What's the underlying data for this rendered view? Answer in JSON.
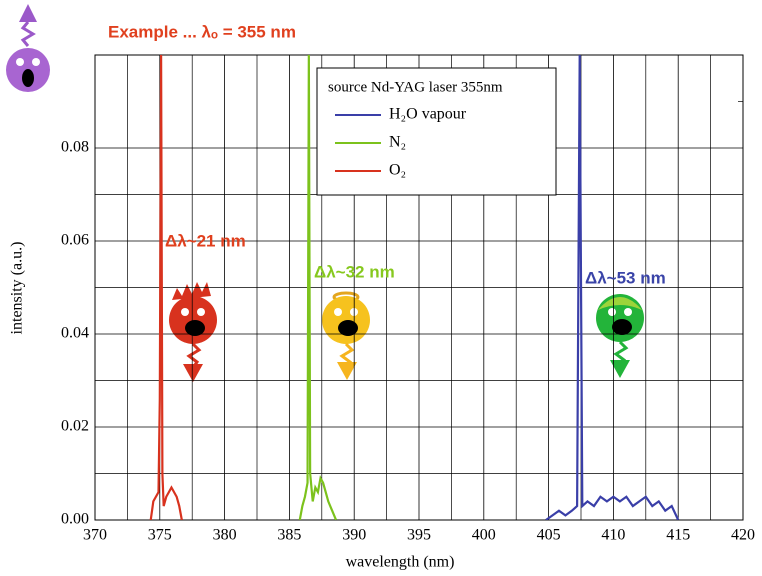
{
  "chart_data": {
    "type": "line",
    "x_label": "wavelength (nm)",
    "y_label": "intensity (a.u.)",
    "xlim": [
      370,
      420
    ],
    "xticks": [
      370,
      375,
      380,
      385,
      390,
      395,
      400,
      405,
      410,
      415,
      420
    ],
    "ylim": [
      0,
      0.1
    ],
    "yticks": [
      {
        "value": 0,
        "label": "0.00"
      },
      {
        "value": 0.02,
        "label": "0.02"
      },
      {
        "value": 0.04,
        "label": "0.04"
      },
      {
        "value": 0.06,
        "label": "0.06"
      },
      {
        "value": 0.08,
        "label": "0.08"
      }
    ],
    "grid": true,
    "legend_title": "source Nd-YAG laser 355nm",
    "legend_position": "top-right",
    "series": [
      {
        "name": "H₂O vapour",
        "color": "#3a3fa8",
        "x": [
          404.8,
          405.3,
          405.8,
          406.3,
          406.8,
          407.2,
          407.4,
          407.6,
          408.0,
          408.5,
          409.0,
          409.5,
          410.0,
          410.5,
          411.0,
          411.5,
          412.0,
          412.5,
          413.0,
          413.5,
          414.0,
          414.5,
          415.0
        ],
        "values": [
          0,
          0.001,
          0.002,
          0.001,
          0.002,
          0.003,
          0.1,
          0.003,
          0.004,
          0.003,
          0.005,
          0.004,
          0.005,
          0.004,
          0.005,
          0.003,
          0.004,
          0.005,
          0.003,
          0.004,
          0.002,
          0.003,
          0
        ]
      },
      {
        "name": "N₂",
        "color": "#7cc21c",
        "x": [
          385.8,
          386.0,
          386.2,
          386.4,
          386.5,
          386.6,
          386.8,
          387.0,
          387.2,
          387.4,
          387.6,
          387.8,
          388.0,
          388.3,
          388.6
        ],
        "values": [
          0,
          0.003,
          0.005,
          0.008,
          0.1,
          0.01,
          0.004,
          0.007,
          0.006,
          0.009,
          0.008,
          0.006,
          0.004,
          0.002,
          0
        ]
      },
      {
        "name": "O₂",
        "color": "#d8321e",
        "x": [
          374.3,
          374.5,
          374.7,
          374.9,
          375.0,
          375.1,
          375.2,
          375.3,
          375.5,
          375.7,
          375.9,
          376.1,
          376.3,
          376.5,
          376.7
        ],
        "values": [
          0,
          0.004,
          0.005,
          0.006,
          0.026,
          0.1,
          0.01,
          0.003,
          0.005,
          0.006,
          0.007,
          0.006,
          0.005,
          0.003,
          0
        ]
      }
    ],
    "annotations": [
      {
        "text": "Example ... λₒ = 355 nm",
        "color": "#e0401e"
      },
      {
        "text": "Δλ~21 nm",
        "color": "#e0401e"
      },
      {
        "text": "Δλ~32 nm",
        "color": "#86c81e"
      },
      {
        "text": "Δλ~53 nm",
        "color": "#3a44a8"
      }
    ]
  }
}
